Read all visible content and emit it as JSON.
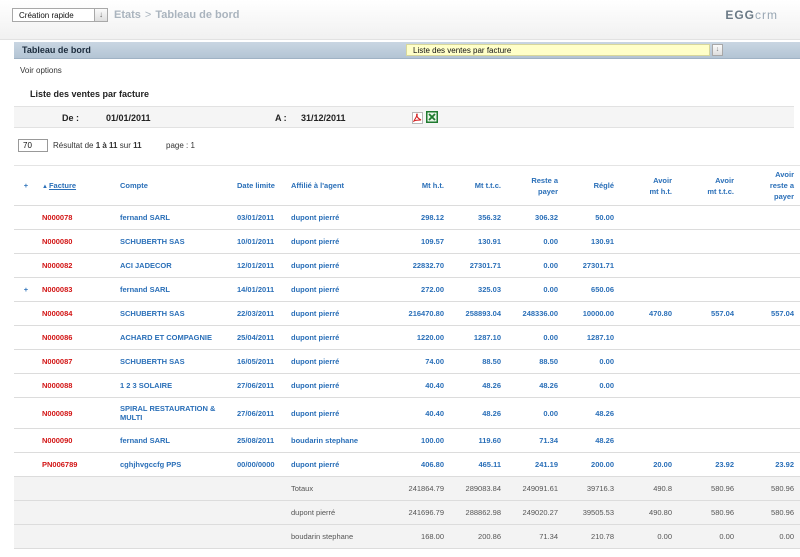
{
  "topbar": {
    "quick_create": "Création rapide",
    "quick_btn_glyph": "↓",
    "crumb_root": "Etats",
    "crumb_sep": ">",
    "crumb_current": "Tableau de bord",
    "logo_main": "EGG",
    "logo_sub": "crm"
  },
  "section": {
    "title": "Tableau de bord",
    "report_select": "Liste des ventes par facture",
    "report_btn_glyph": "↓"
  },
  "options_link": "Voir options",
  "report_title": "Liste des ventes par facture",
  "dates": {
    "from_label": "De :",
    "from_value": "01/01/2011",
    "to_label": "A :",
    "to_value": "31/12/2011"
  },
  "paging": {
    "per_page": "70",
    "result_prefix": "Résultat de ",
    "result_range": "1 à 11",
    "result_middle": " sur ",
    "result_total": "11",
    "page_label": "page : ",
    "page_value": "1"
  },
  "table": {
    "expand_glyph": "+",
    "sort_glyph": "▲",
    "headers": {
      "facture": "Facture",
      "compte": "Compte",
      "date_limite": "Date limite",
      "agent": "Affilié à l'agent",
      "mt_ht": "Mt h.t.",
      "mt_ttc": "Mt t.t.c.",
      "reste_1": "Reste a",
      "reste_2": "payer",
      "regle": "Réglé",
      "avoir_ht_1": "Avoir",
      "avoir_ht_2": "mt h.t.",
      "avoir_ttc_1": "Avoir",
      "avoir_ttc_2": "mt t.t.c.",
      "avoir_reste_1": "Avoir",
      "avoir_reste_2": "reste a",
      "avoir_reste_3": "payer"
    },
    "rows": [
      {
        "plus": "",
        "facture": "N000078",
        "compte": "fernand SARL",
        "compte2": "",
        "date": "03/01/2011",
        "agent": "dupont pierré",
        "ht": "298.12",
        "ttc": "356.32",
        "reste": "306.32",
        "regle": "50.00",
        "avoir_ht": "",
        "avoir_ttc": "",
        "avoir_reste": ""
      },
      {
        "plus": "",
        "facture": "N000080",
        "compte": "SCHUBERTH SAS",
        "compte2": "",
        "date": "10/01/2011",
        "agent": "dupont pierré",
        "ht": "109.57",
        "ttc": "130.91",
        "reste": "0.00",
        "regle": "130.91",
        "avoir_ht": "",
        "avoir_ttc": "",
        "avoir_reste": ""
      },
      {
        "plus": "",
        "facture": "N000082",
        "compte": "ACI JADECOR",
        "compte2": "",
        "date": "12/01/2011",
        "agent": "dupont pierré",
        "ht": "22832.70",
        "ttc": "27301.71",
        "reste": "0.00",
        "regle": "27301.71",
        "avoir_ht": "",
        "avoir_ttc": "",
        "avoir_reste": ""
      },
      {
        "plus": "+",
        "facture": "N000083",
        "compte": "fernand SARL",
        "compte2": "",
        "date": "14/01/2011",
        "agent": "dupont pierré",
        "ht": "272.00",
        "ttc": "325.03",
        "reste": "0.00",
        "regle": "650.06",
        "avoir_ht": "",
        "avoir_ttc": "",
        "avoir_reste": ""
      },
      {
        "plus": "",
        "facture": "N000084",
        "compte": "SCHUBERTH SAS",
        "compte2": "",
        "date": "22/03/2011",
        "agent": "dupont pierré",
        "ht": "216470.80",
        "ttc": "258893.04",
        "reste": "248336.00",
        "regle": "10000.00",
        "avoir_ht": "470.80",
        "avoir_ttc": "557.04",
        "avoir_reste": "557.04"
      },
      {
        "plus": "",
        "facture": "N000086",
        "compte": "ACHARD ET COMPAGNIE",
        "compte2": "",
        "date": "25/04/2011",
        "agent": "dupont pierré",
        "ht": "1220.00",
        "ttc": "1287.10",
        "reste": "0.00",
        "regle": "1287.10",
        "avoir_ht": "",
        "avoir_ttc": "",
        "avoir_reste": ""
      },
      {
        "plus": "",
        "facture": "N000087",
        "compte": "SCHUBERTH SAS",
        "compte2": "",
        "date": "16/05/2011",
        "agent": "dupont pierré",
        "ht": "74.00",
        "ttc": "88.50",
        "reste": "88.50",
        "regle": "0.00",
        "avoir_ht": "",
        "avoir_ttc": "",
        "avoir_reste": ""
      },
      {
        "plus": "",
        "facture": "N000088",
        "compte": "1 2 3 SOLAIRE",
        "compte2": "",
        "date": "27/06/2011",
        "agent": "dupont pierré",
        "ht": "40.40",
        "ttc": "48.26",
        "reste": "48.26",
        "regle": "0.00",
        "avoir_ht": "",
        "avoir_ttc": "",
        "avoir_reste": ""
      },
      {
        "plus": "",
        "facture": "N000089",
        "compte": "SPIRAL RESTAURATION &",
        "compte2": "MULTI",
        "date": "27/06/2011",
        "agent": "dupont pierré",
        "ht": "40.40",
        "ttc": "48.26",
        "reste": "0.00",
        "regle": "48.26",
        "avoir_ht": "",
        "avoir_ttc": "",
        "avoir_reste": ""
      },
      {
        "plus": "",
        "facture": "N000090",
        "compte": "fernand SARL",
        "compte2": "",
        "date": "25/08/2011",
        "agent": "boudarin stephane",
        "ht": "100.00",
        "ttc": "119.60",
        "reste": "71.34",
        "regle": "48.26",
        "avoir_ht": "",
        "avoir_ttc": "",
        "avoir_reste": ""
      },
      {
        "plus": "",
        "facture": "PN006789",
        "compte": "cghjhvgccfg PPS",
        "compte2": "",
        "date": "00/00/0000",
        "agent": "dupont pierré",
        "ht": "406.80",
        "ttc": "465.11",
        "reste": "241.19",
        "regle": "200.00",
        "avoir_ht": "20.00",
        "avoir_ttc": "23.92",
        "avoir_reste": "23.92"
      }
    ],
    "totals": [
      {
        "label": "Totaux",
        "ht": "241864.79",
        "ttc": "289083.84",
        "reste": "249091.61",
        "regle": "39716.3",
        "avoir_ht": "490.8",
        "avoir_ttc": "580.96",
        "avoir_reste": "580.96"
      },
      {
        "label": "dupont pierré",
        "ht": "241696.79",
        "ttc": "288862.98",
        "reste": "249020.27",
        "regle": "39505.53",
        "avoir_ht": "490.80",
        "avoir_ttc": "580.96",
        "avoir_reste": "580.96"
      },
      {
        "label": "boudarin stephane",
        "ht": "168.00",
        "ttc": "200.86",
        "reste": "71.34",
        "regle": "210.78",
        "avoir_ht": "0.00",
        "avoir_ttc": "0.00",
        "avoir_reste": "0.00"
      }
    ]
  }
}
